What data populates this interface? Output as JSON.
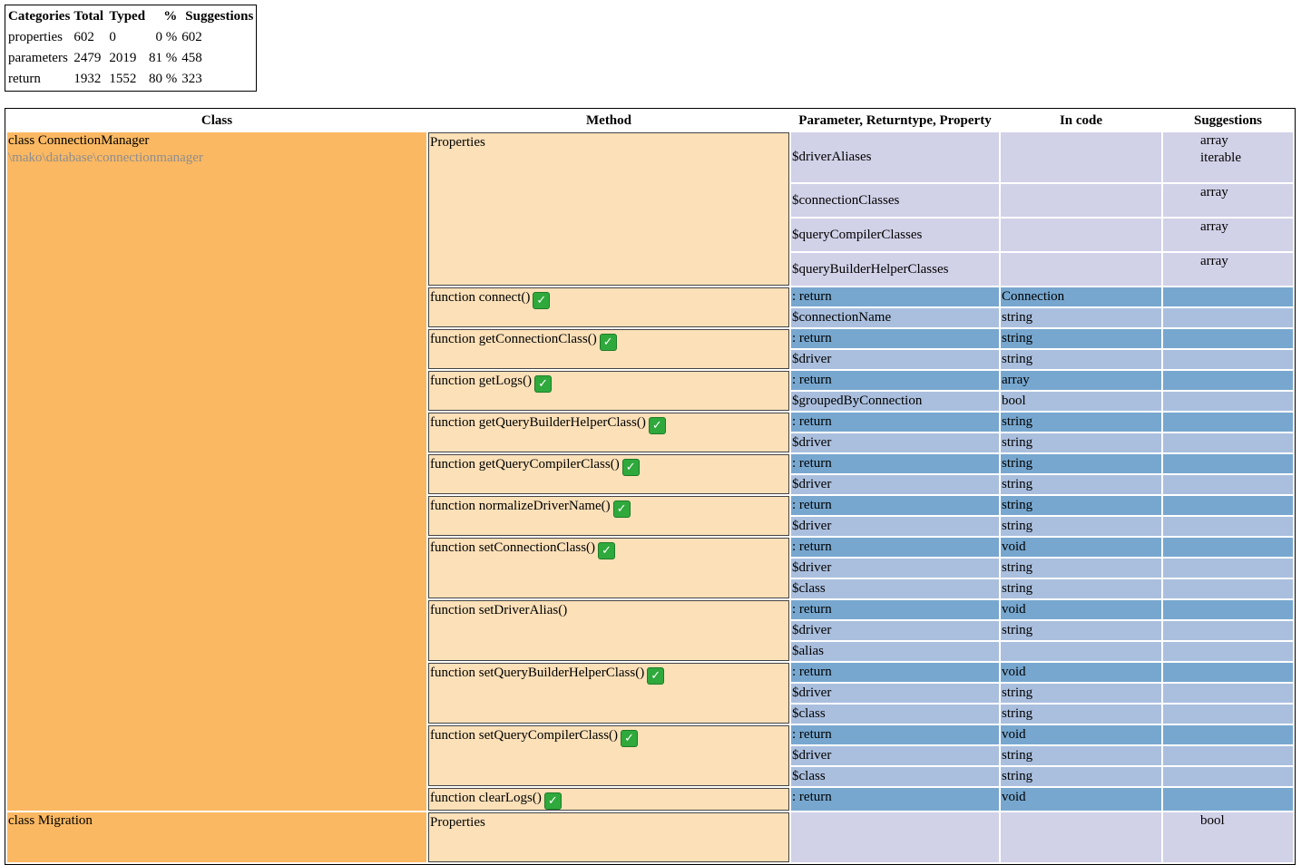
{
  "summary": {
    "headers": [
      "Categories",
      "Total",
      "Typed",
      "%",
      "Suggestions"
    ],
    "rows": [
      [
        "properties",
        "602",
        "0",
        "0 %",
        "602"
      ],
      [
        "parameters",
        "2479",
        "2019",
        "81 %",
        "458"
      ],
      [
        "return",
        "1932",
        "1552",
        "80 %",
        "323"
      ]
    ]
  },
  "main": {
    "headers": [
      "Class",
      "Method",
      "Parameter, Returntype, Property",
      "In code",
      "Suggestions"
    ],
    "classes": [
      {
        "name": "class ConnectionManager",
        "namespace": "\\mako\\database\\connectionmanager",
        "properties_label": "Properties",
        "properties": [
          {
            "name": "$driverAliases",
            "code": "",
            "suggestions": [
              "array",
              "iterable"
            ]
          },
          {
            "name": "$connectionClasses",
            "code": "",
            "suggestions": [
              "array"
            ]
          },
          {
            "name": "$queryCompilerClasses",
            "code": "",
            "suggestions": [
              "array"
            ]
          },
          {
            "name": "$queryBuilderHelperClasses",
            "code": "",
            "suggestions": [
              "array"
            ]
          }
        ],
        "methods": [
          {
            "name": "function connect()",
            "checked": true,
            "rows": [
              {
                "kind": "return",
                "label": ": return",
                "code": "Connection",
                "sugg": ""
              },
              {
                "kind": "param",
                "label": "$connectionName",
                "code": "string",
                "sugg": ""
              }
            ]
          },
          {
            "name": "function getConnectionClass()",
            "checked": true,
            "rows": [
              {
                "kind": "return",
                "label": ": return",
                "code": "string",
                "sugg": ""
              },
              {
                "kind": "param",
                "label": "$driver",
                "code": "string",
                "sugg": ""
              }
            ]
          },
          {
            "name": "function getLogs()",
            "checked": true,
            "rows": [
              {
                "kind": "return",
                "label": ": return",
                "code": "array",
                "sugg": ""
              },
              {
                "kind": "param",
                "label": "$groupedByConnection",
                "code": "bool",
                "sugg": ""
              }
            ]
          },
          {
            "name": "function getQueryBuilderHelperClass()",
            "checked": true,
            "rows": [
              {
                "kind": "return",
                "label": ": return",
                "code": "string",
                "sugg": ""
              },
              {
                "kind": "param",
                "label": "$driver",
                "code": "string",
                "sugg": ""
              }
            ]
          },
          {
            "name": "function getQueryCompilerClass()",
            "checked": true,
            "rows": [
              {
                "kind": "return",
                "label": ": return",
                "code": "string",
                "sugg": ""
              },
              {
                "kind": "param",
                "label": "$driver",
                "code": "string",
                "sugg": ""
              }
            ]
          },
          {
            "name": "function normalizeDriverName()",
            "checked": true,
            "rows": [
              {
                "kind": "return",
                "label": ": return",
                "code": "string",
                "sugg": ""
              },
              {
                "kind": "param",
                "label": "$driver",
                "code": "string",
                "sugg": ""
              }
            ]
          },
          {
            "name": "function setConnectionClass()",
            "checked": true,
            "rows": [
              {
                "kind": "return",
                "label": ": return",
                "code": "void",
                "sugg": ""
              },
              {
                "kind": "param",
                "label": "$driver",
                "code": "string",
                "sugg": ""
              },
              {
                "kind": "param",
                "label": "$class",
                "code": "string",
                "sugg": ""
              }
            ]
          },
          {
            "name": "function setDriverAlias()",
            "checked": false,
            "rows": [
              {
                "kind": "return",
                "label": ": return",
                "code": "void",
                "sugg": ""
              },
              {
                "kind": "param",
                "label": "$driver",
                "code": "string",
                "sugg": ""
              },
              {
                "kind": "param",
                "label": "$alias",
                "code": "",
                "sugg": ""
              }
            ]
          },
          {
            "name": "function setQueryBuilderHelperClass()",
            "checked": true,
            "rows": [
              {
                "kind": "return",
                "label": ": return",
                "code": "void",
                "sugg": ""
              },
              {
                "kind": "param",
                "label": "$driver",
                "code": "string",
                "sugg": ""
              },
              {
                "kind": "param",
                "label": "$class",
                "code": "string",
                "sugg": ""
              }
            ]
          },
          {
            "name": "function setQueryCompilerClass()",
            "checked": true,
            "rows": [
              {
                "kind": "return",
                "label": ": return",
                "code": "void",
                "sugg": ""
              },
              {
                "kind": "param",
                "label": "$driver",
                "code": "string",
                "sugg": ""
              },
              {
                "kind": "param",
                "label": "$class",
                "code": "string",
                "sugg": ""
              }
            ]
          },
          {
            "name": "function clearLogs()",
            "checked": true,
            "rows": [
              {
                "kind": "return",
                "label": ": return",
                "code": "void",
                "sugg": ""
              }
            ]
          }
        ]
      },
      {
        "name": "class Migration",
        "namespace": "",
        "properties_label": "Properties",
        "properties": [
          {
            "name": "",
            "code": "",
            "suggestions": [
              "bool"
            ]
          }
        ],
        "methods": []
      }
    ]
  },
  "colors": {
    "class_bg": "#fbb862",
    "method_bg": "#fbe0b8",
    "property_bg": "#d1d1e8",
    "return_bg": "#77a7cf",
    "param_bg": "#aabfde"
  },
  "icons": {
    "check": "check-mark-icon"
  }
}
